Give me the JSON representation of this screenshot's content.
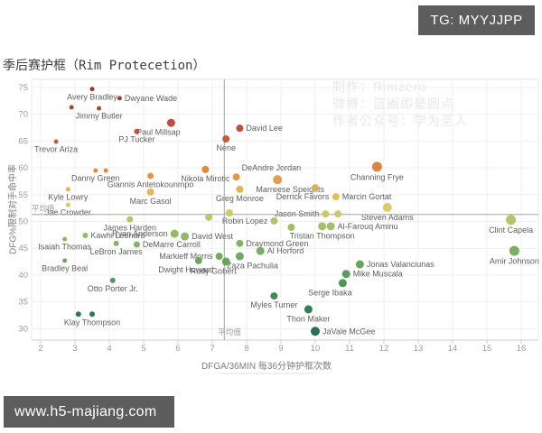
{
  "overlay": {
    "tg_badge": "TG: MYYJJPP",
    "site_badge": "www.h5-majiang.com",
    "badge_bg": "#5d5d5d"
  },
  "watermark": {
    "line1": "制作：Rimzero",
    "line2": "微博：篮圈即是圆点",
    "line3": "作者公众号：学为圣人",
    "color": "#e9e8e6"
  },
  "chart_data": {
    "type": "scatter",
    "title": "季后赛护框（Rim Protecetion）",
    "xlabel": "DFGA/36MIN 每36分钟护框次数",
    "ylabel": "DFG%限制对手命中率",
    "x_ticks": [
      2,
      3,
      4,
      5,
      6,
      7,
      8,
      9,
      10,
      11,
      12,
      13,
      14,
      15,
      16
    ],
    "y_ticks": [
      30,
      35,
      40,
      45,
      50,
      55,
      60,
      65,
      70,
      75
    ],
    "xlim": [
      1.74,
      16.5
    ],
    "ylim": [
      27.9,
      76.5
    ],
    "grid": true,
    "mean_x": 7.35,
    "mean_y": 51.3,
    "mean_label": "平均值",
    "color_encoding": "y (DFG%): green = low / good rim protection, red = high / bad",
    "size_encoding": "bubble size varies by player volume",
    "color_stops": [
      [
        29,
        "#17693f"
      ],
      [
        33,
        "#1f7747"
      ],
      [
        36,
        "#35854c"
      ],
      [
        40,
        "#4f9751"
      ],
      [
        43,
        "#66a456"
      ],
      [
        46,
        "#7fb05a"
      ],
      [
        48.5,
        "#94bb5e"
      ],
      [
        50.5,
        "#b2c360"
      ],
      [
        51.5,
        "#cdc95c"
      ],
      [
        53,
        "#ddc855"
      ],
      [
        55,
        "#e4b94a"
      ],
      [
        57,
        "#e2a440"
      ],
      [
        59,
        "#de8c39"
      ],
      [
        61,
        "#d97434"
      ],
      [
        63,
        "#d15e2f"
      ],
      [
        65,
        "#c8502f"
      ],
      [
        68,
        "#bc4530"
      ],
      [
        71,
        "#a93a2c"
      ],
      [
        75,
        "#8f2a23"
      ]
    ],
    "points": [
      {
        "name": "Avery Bradley",
        "x": 3.5,
        "y": 74.7,
        "r": 2.5,
        "anchor": "b"
      },
      {
        "name": "Dwyane Wade",
        "x": 4.3,
        "y": 73.0,
        "r": 2.5,
        "anchor": "r"
      },
      {
        "name": "Jimmy Butler",
        "x": 3.7,
        "y": 71.1,
        "r": 2.5,
        "anchor": "b"
      },
      {
        "name": "",
        "x": 2.9,
        "y": 71.3,
        "r": 2.5
      },
      {
        "name": "Paul Millsap",
        "x": 5.8,
        "y": 68.4,
        "r": 4.5,
        "anchor": "bl"
      },
      {
        "name": "PJ Tucker",
        "x": 4.8,
        "y": 66.8,
        "r": 3,
        "anchor": "b"
      },
      {
        "name": "Trevor Ariza",
        "x": 2.45,
        "y": 64.9,
        "r": 2.5,
        "anchor": "b"
      },
      {
        "name": "Nene",
        "x": 7.4,
        "y": 65.4,
        "r": 4,
        "anchor": "b"
      },
      {
        "name": "David Lee",
        "x": 7.8,
        "y": 67.4,
        "r": 4,
        "anchor": "r"
      },
      {
        "name": "Danny Green",
        "x": 3.6,
        "y": 59.5,
        "r": 2.5,
        "anchor": "b"
      },
      {
        "name": "",
        "x": 3.9,
        "y": 59.5,
        "r": 2.5
      },
      {
        "name": "Giannis Antetokounmpo",
        "x": 5.2,
        "y": 58.5,
        "r": 3.5,
        "anchor": "b"
      },
      {
        "name": "Nikola Mirotic",
        "x": 6.8,
        "y": 59.7,
        "r": 4,
        "anchor": "b"
      },
      {
        "name": "Kyle Lowry",
        "x": 2.8,
        "y": 56.0,
        "r": 2.5,
        "anchor": "b"
      },
      {
        "name": "Marc Gasol",
        "x": 5.2,
        "y": 55.5,
        "r": 4,
        "anchor": "b"
      },
      {
        "name": "Jae Crowder",
        "x": 2.8,
        "y": 53.1,
        "r": 2.5,
        "anchor": "b"
      },
      {
        "name": "DeAndre Jordan",
        "x": 7.7,
        "y": 58.3,
        "r": 4,
        "anchor": "ar"
      },
      {
        "name": "Marreese Speights",
        "x": 8.9,
        "y": 57.8,
        "r": 5,
        "anchor": "br"
      },
      {
        "name": "Greg Monroe",
        "x": 7.8,
        "y": 56.0,
        "r": 4,
        "anchor": "b"
      },
      {
        "name": "Derrick Favors",
        "x": 10.0,
        "y": 56.3,
        "r": 4,
        "anchor": "bl"
      },
      {
        "name": "Marcin Gortat",
        "x": 10.6,
        "y": 54.6,
        "r": 4,
        "anchor": "r"
      },
      {
        "name": "Channing Frye",
        "x": 11.8,
        "y": 60.2,
        "r": 5.5,
        "anchor": "b"
      },
      {
        "name": "Jason Smith",
        "x": 10.3,
        "y": 51.4,
        "r": 4,
        "anchor": "l"
      },
      {
        "name": "",
        "x": 10.66,
        "y": 51.4,
        "r": 4
      },
      {
        "name": "Steven Adams",
        "x": 12.1,
        "y": 52.6,
        "r": 5,
        "anchor": "b"
      },
      {
        "name": "",
        "x": 7.5,
        "y": 51.6,
        "r": 4
      },
      {
        "name": "Robin Lopez",
        "x": 8.8,
        "y": 50.1,
        "r": 4,
        "anchor": "l"
      },
      {
        "name": "",
        "x": 6.9,
        "y": 50.8,
        "r": 4
      },
      {
        "name": "James Harden",
        "x": 4.6,
        "y": 50.4,
        "r": 3.5,
        "anchor": "b"
      },
      {
        "name": "Ryan Anderson",
        "x": 5.9,
        "y": 47.7,
        "r": 4.5,
        "anchor": "l"
      },
      {
        "name": "David West",
        "x": 6.2,
        "y": 47.2,
        "r": 4.5,
        "anchor": "r"
      },
      {
        "name": "Kawhi Leonard",
        "x": 3.3,
        "y": 47.4,
        "r": 3,
        "anchor": "r"
      },
      {
        "name": "Isaiah Thomas",
        "x": 2.7,
        "y": 46.7,
        "r": 2.5,
        "anchor": "b"
      },
      {
        "name": "LeBron James",
        "x": 4.2,
        "y": 45.9,
        "r": 3,
        "anchor": "b"
      },
      {
        "name": "DeMarre Carroll",
        "x": 4.8,
        "y": 45.7,
        "r": 3.5,
        "anchor": "r"
      },
      {
        "name": "Tristan Thompson",
        "x": 10.2,
        "y": 49.1,
        "r": 4.5,
        "anchor": "b"
      },
      {
        "name": "Al-Farouq Aminu",
        "x": 10.45,
        "y": 49.1,
        "r": 4.5,
        "anchor": "r"
      },
      {
        "name": "",
        "x": 9.3,
        "y": 48.9,
        "r": 4
      },
      {
        "name": "Draymond Green",
        "x": 7.8,
        "y": 45.9,
        "r": 4,
        "anchor": "r"
      },
      {
        "name": "Al Horford",
        "x": 8.4,
        "y": 44.5,
        "r": 4.5,
        "anchor": "r"
      },
      {
        "name": "Markieff Morris",
        "x": 7.2,
        "y": 43.5,
        "r": 4,
        "anchor": "l"
      },
      {
        "name": "Zaza Pachulia",
        "x": 7.8,
        "y": 43.5,
        "r": 4.5,
        "anchor": "br"
      },
      {
        "name": "Rudy Gobert",
        "x": 7.4,
        "y": 42.5,
        "r": 4.5,
        "anchor": "bl"
      },
      {
        "name": "Dwight Howard",
        "x": 6.6,
        "y": 42.7,
        "r": 4,
        "anchor": "bl"
      },
      {
        "name": "Bradley Beal",
        "x": 2.7,
        "y": 42.7,
        "r": 2.5,
        "anchor": "b"
      },
      {
        "name": "Otto Porter Jr.",
        "x": 4.1,
        "y": 39.0,
        "r": 3,
        "anchor": "b"
      },
      {
        "name": "Klay Thompson",
        "x": 3.5,
        "y": 32.7,
        "r": 3,
        "anchor": "b"
      },
      {
        "name": "",
        "x": 3.1,
        "y": 32.7,
        "r": 3
      },
      {
        "name": "Myles Turner",
        "x": 8.8,
        "y": 36.1,
        "r": 4,
        "anchor": "b"
      },
      {
        "name": "Thon Maker",
        "x": 9.8,
        "y": 33.6,
        "r": 4.5,
        "anchor": "b"
      },
      {
        "name": "JaVale McGee",
        "x": 10.0,
        "y": 29.5,
        "r": 5,
        "anchor": "r"
      },
      {
        "name": "Serge Ibaka",
        "x": 10.8,
        "y": 38.5,
        "r": 4.5,
        "anchor": "bl"
      },
      {
        "name": "Mike Muscala",
        "x": 10.9,
        "y": 40.2,
        "r": 4.5,
        "anchor": "r"
      },
      {
        "name": "Jonas Valanciunas",
        "x": 11.3,
        "y": 42.0,
        "r": 4.5,
        "anchor": "r"
      },
      {
        "name": "Clint Capela",
        "x": 15.7,
        "y": 50.3,
        "r": 5.5,
        "anchor": "b"
      },
      {
        "name": "Amir Johnson",
        "x": 15.8,
        "y": 44.5,
        "r": 5.5,
        "anchor": "b"
      }
    ]
  }
}
